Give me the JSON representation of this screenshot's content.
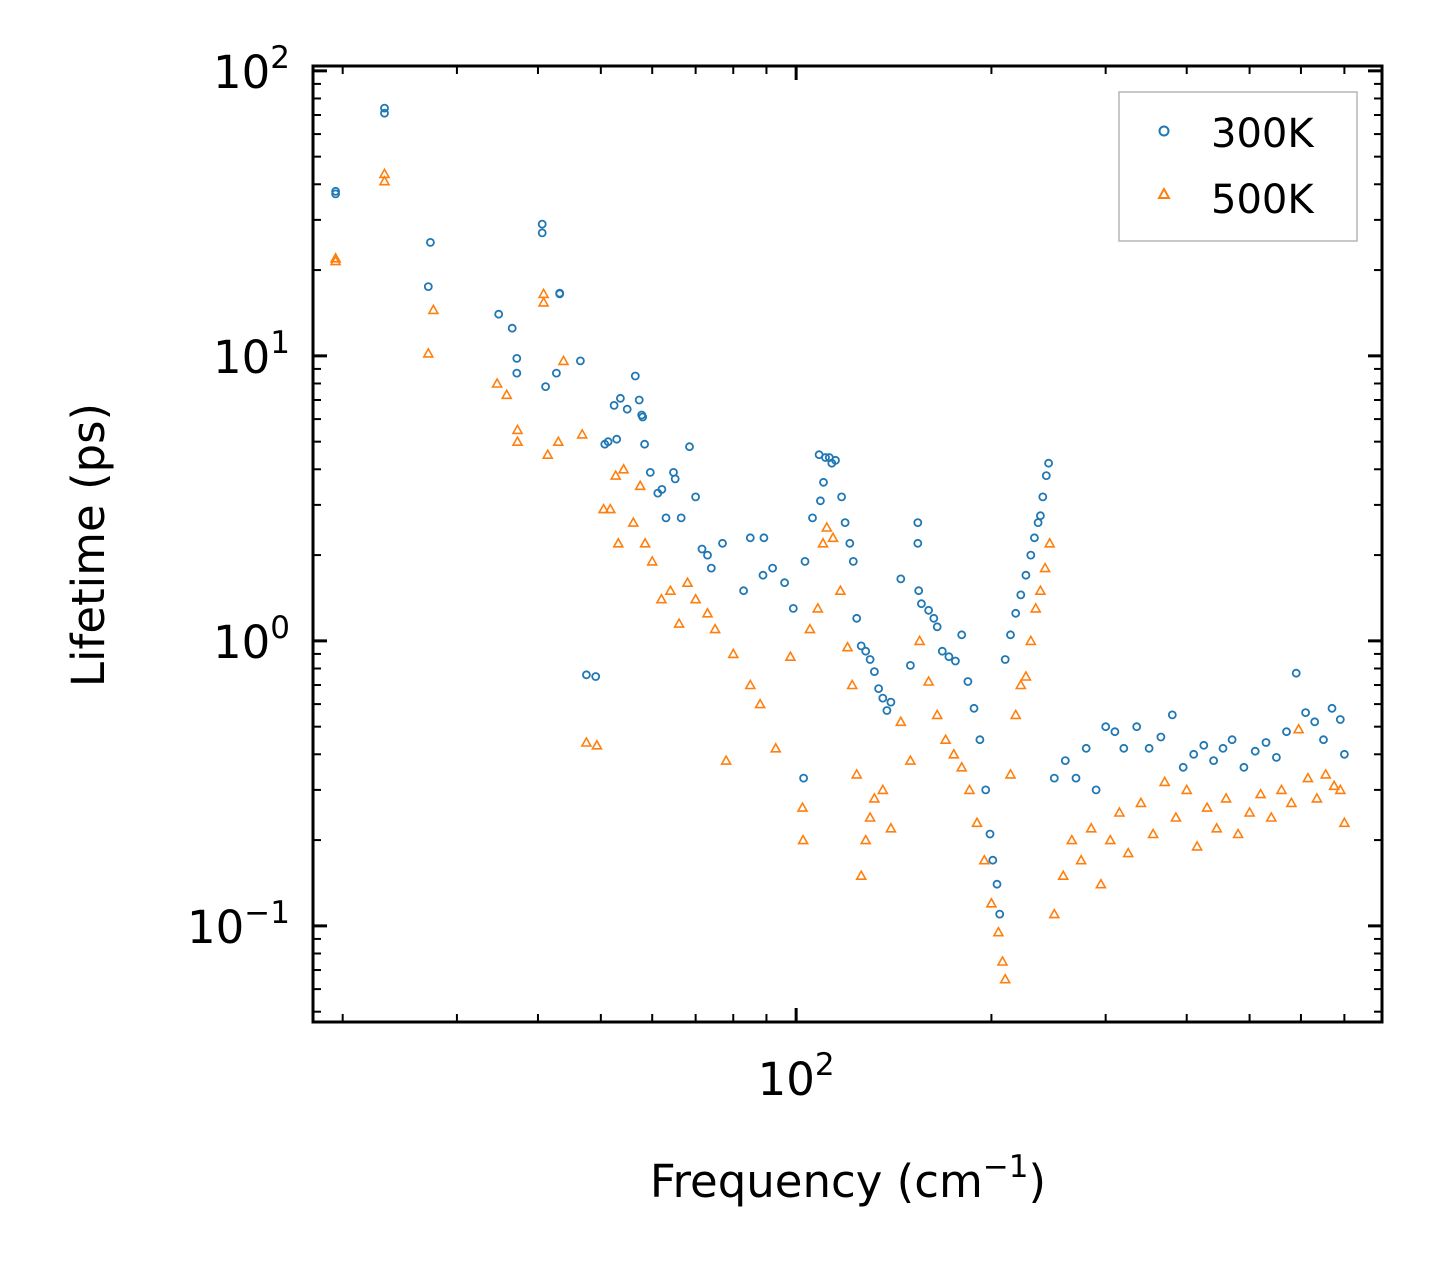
{
  "chart_data": {
    "type": "scatter",
    "xscale": "log",
    "yscale": "log",
    "xlim": [
      18,
      800
    ],
    "ylim": [
      0.046,
      104
    ],
    "xlabel": "Frequency (cm",
    "xlabel_sup": "−1",
    "xlabel_end": ")",
    "ylabel": "Lifetime (ps)",
    "x_ticks": [
      {
        "base": "10",
        "exp": "2",
        "value": 100
      }
    ],
    "y_ticks": [
      {
        "base": "10",
        "exp": "2",
        "value": 100
      },
      {
        "base": "10",
        "exp": "1",
        "value": 10
      },
      {
        "base": "10",
        "exp": "0",
        "value": 1
      },
      {
        "base": "10",
        "exp": "−1",
        "value": 0.1
      }
    ],
    "legend_position": "top-right",
    "series": [
      {
        "name": "300K",
        "marker": "circle",
        "color": "#1f77b4",
        "points": [
          [
            19.5,
            37
          ],
          [
            19.5,
            37.8
          ],
          [
            23.2,
            71
          ],
          [
            23.2,
            74
          ],
          [
            27.3,
            25
          ],
          [
            27.1,
            17.5
          ],
          [
            34.8,
            14
          ],
          [
            36.5,
            12.5
          ],
          [
            37.1,
            9.8
          ],
          [
            37.1,
            8.7
          ],
          [
            40.6,
            29
          ],
          [
            40.6,
            27
          ],
          [
            41.1,
            7.8
          ],
          [
            42.7,
            8.7
          ],
          [
            43.2,
            16.5
          ],
          [
            43.2,
            16.6
          ],
          [
            46.5,
            9.6
          ],
          [
            47.5,
            0.76
          ],
          [
            49.1,
            0.75
          ],
          [
            50.7,
            4.9
          ],
          [
            51.3,
            5
          ],
          [
            52.4,
            6.7
          ],
          [
            52.9,
            5.1
          ],
          [
            53.6,
            7.1
          ],
          [
            54.9,
            6.5
          ],
          [
            56.5,
            8.5
          ],
          [
            57.3,
            7
          ],
          [
            57.8,
            6.2
          ],
          [
            58,
            6.1
          ],
          [
            58.4,
            4.9
          ],
          [
            59.6,
            3.9
          ],
          [
            61.2,
            3.3
          ],
          [
            62.1,
            3.4
          ],
          [
            63,
            2.7
          ],
          [
            64.7,
            3.9
          ],
          [
            65.1,
            3.7
          ],
          [
            66.5,
            2.7
          ],
          [
            68.5,
            4.8
          ],
          [
            70,
            3.2
          ],
          [
            71.6,
            2.1
          ],
          [
            73,
            2
          ],
          [
            74,
            1.8
          ],
          [
            77,
            2.2
          ],
          [
            83,
            1.5
          ],
          [
            85,
            2.3
          ],
          [
            88.9,
            1.7
          ],
          [
            89.2,
            2.3
          ],
          [
            92,
            1.8
          ],
          [
            96,
            1.6
          ],
          [
            99,
            1.3
          ],
          [
            102.7,
            0.33
          ],
          [
            103.2,
            1.9
          ],
          [
            106,
            2.7
          ],
          [
            108.5,
            4.5
          ],
          [
            109,
            3.1
          ],
          [
            110.2,
            3.6
          ],
          [
            111,
            4.4
          ],
          [
            112.5,
            4.4
          ],
          [
            113.5,
            4.2
          ],
          [
            115,
            4.3
          ],
          [
            117.5,
            3.2
          ],
          [
            119,
            2.6
          ],
          [
            121,
            2.2
          ],
          [
            122.5,
            1.9
          ],
          [
            124,
            1.2
          ],
          [
            126,
            0.96
          ],
          [
            128,
            0.92
          ],
          [
            130,
            0.86
          ],
          [
            132,
            0.78
          ],
          [
            134,
            0.68
          ],
          [
            136,
            0.63
          ],
          [
            138,
            0.57
          ],
          [
            140,
            0.61
          ],
          [
            145,
            1.65
          ],
          [
            150,
            0.82
          ],
          [
            154,
            2.6
          ],
          [
            154,
            2.2
          ],
          [
            154.5,
            1.5
          ],
          [
            156,
            1.35
          ],
          [
            160,
            1.28
          ],
          [
            163,
            1.2
          ],
          [
            165,
            1.12
          ],
          [
            168,
            0.92
          ],
          [
            172,
            0.88
          ],
          [
            176,
            0.85
          ],
          [
            180,
            1.05
          ],
          [
            184,
            0.72
          ],
          [
            188,
            0.58
          ],
          [
            192,
            0.45
          ],
          [
            196,
            0.3
          ],
          [
            199,
            0.21
          ],
          [
            201,
            0.17
          ],
          [
            204,
            0.14
          ],
          [
            206,
            0.11
          ],
          [
            210,
            0.86
          ],
          [
            214,
            1.05
          ],
          [
            218,
            1.25
          ],
          [
            222,
            1.45
          ],
          [
            226,
            1.7
          ],
          [
            230,
            2.0
          ],
          [
            233,
            2.3
          ],
          [
            236,
            2.6
          ],
          [
            238,
            2.75
          ],
          [
            240,
            3.2
          ],
          [
            243,
            3.8
          ],
          [
            245,
            4.2
          ],
          [
            250,
            0.33
          ],
          [
            260,
            0.38
          ],
          [
            270,
            0.33
          ],
          [
            280,
            0.42
          ],
          [
            290,
            0.3
          ],
          [
            300,
            0.5
          ],
          [
            310,
            0.48
          ],
          [
            320,
            0.42
          ],
          [
            335,
            0.5
          ],
          [
            350,
            0.42
          ],
          [
            365,
            0.46
          ],
          [
            380,
            0.55
          ],
          [
            395,
            0.36
          ],
          [
            410,
            0.4
          ],
          [
            425,
            0.43
          ],
          [
            440,
            0.38
          ],
          [
            455,
            0.42
          ],
          [
            470,
            0.45
          ],
          [
            490,
            0.36
          ],
          [
            510,
            0.41
          ],
          [
            530,
            0.44
          ],
          [
            550,
            0.39
          ],
          [
            570,
            0.48
          ],
          [
            590,
            0.77
          ],
          [
            610,
            0.56
          ],
          [
            630,
            0.52
          ],
          [
            650,
            0.45
          ],
          [
            670,
            0.58
          ],
          [
            690,
            0.53
          ],
          [
            700,
            0.4
          ]
        ]
      },
      {
        "name": "500K",
        "marker": "triangle",
        "color": "#ff7f0e",
        "points": [
          [
            19.5,
            21.5
          ],
          [
            19.5,
            22
          ],
          [
            23.2,
            41
          ],
          [
            23.2,
            43.5
          ],
          [
            27.1,
            10.2
          ],
          [
            27.6,
            14.5
          ],
          [
            34.6,
            8
          ],
          [
            35.8,
            7.3
          ],
          [
            37.2,
            5.5
          ],
          [
            37.2,
            5
          ],
          [
            40.8,
            16.5
          ],
          [
            40.8,
            15.4
          ],
          [
            41.4,
            4.5
          ],
          [
            43,
            5
          ],
          [
            43.8,
            9.6
          ],
          [
            46.8,
            5.3
          ],
          [
            47.5,
            0.44
          ],
          [
            49.3,
            0.43
          ],
          [
            50.5,
            2.9
          ],
          [
            51.7,
            2.9
          ],
          [
            52.7,
            3.8
          ],
          [
            53.2,
            2.2
          ],
          [
            54.2,
            4
          ],
          [
            56.1,
            2.6
          ],
          [
            57.5,
            3.5
          ],
          [
            58.5,
            2.2
          ],
          [
            60,
            1.9
          ],
          [
            62,
            1.4
          ],
          [
            64,
            1.5
          ],
          [
            66,
            1.15
          ],
          [
            68,
            1.6
          ],
          [
            70,
            1.4
          ],
          [
            73,
            1.25
          ],
          [
            75,
            1.1
          ],
          [
            78,
            0.38
          ],
          [
            80,
            0.9
          ],
          [
            85,
            0.7
          ],
          [
            88,
            0.6
          ],
          [
            93,
            0.42
          ],
          [
            98,
            0.88
          ],
          [
            102.3,
            0.26
          ],
          [
            102.5,
            0.2
          ],
          [
            105,
            1.1
          ],
          [
            108,
            1.3
          ],
          [
            110,
            2.2
          ],
          [
            111.5,
            2.5
          ],
          [
            114,
            2.3
          ],
          [
            117,
            1.5
          ],
          [
            120,
            0.95
          ],
          [
            122,
            0.7
          ],
          [
            124,
            0.34
          ],
          [
            126,
            0.15
          ],
          [
            128,
            0.2
          ],
          [
            130,
            0.24
          ],
          [
            132,
            0.28
          ],
          [
            136,
            0.3
          ],
          [
            140,
            0.22
          ],
          [
            145,
            0.52
          ],
          [
            150,
            0.38
          ],
          [
            155,
            1.0
          ],
          [
            160,
            0.72
          ],
          [
            165,
            0.55
          ],
          [
            170,
            0.45
          ],
          [
            175,
            0.4
          ],
          [
            180,
            0.36
          ],
          [
            185,
            0.3
          ],
          [
            190,
            0.23
          ],
          [
            195,
            0.17
          ],
          [
            200,
            0.12
          ],
          [
            205,
            0.095
          ],
          [
            208,
            0.075
          ],
          [
            210,
            0.065
          ],
          [
            214,
            0.34
          ],
          [
            218,
            0.55
          ],
          [
            222,
            0.7
          ],
          [
            226,
            0.75
          ],
          [
            230,
            1.0
          ],
          [
            234,
            1.3
          ],
          [
            238,
            1.5
          ],
          [
            242,
            1.8
          ],
          [
            246,
            2.2
          ],
          [
            250,
            0.11
          ],
          [
            258,
            0.15
          ],
          [
            266,
            0.2
          ],
          [
            275,
            0.17
          ],
          [
            285,
            0.22
          ],
          [
            295,
            0.14
          ],
          [
            305,
            0.2
          ],
          [
            315,
            0.25
          ],
          [
            325,
            0.18
          ],
          [
            340,
            0.27
          ],
          [
            355,
            0.21
          ],
          [
            370,
            0.32
          ],
          [
            385,
            0.24
          ],
          [
            400,
            0.3
          ],
          [
            415,
            0.19
          ],
          [
            430,
            0.26
          ],
          [
            445,
            0.22
          ],
          [
            460,
            0.28
          ],
          [
            480,
            0.21
          ],
          [
            500,
            0.25
          ],
          [
            520,
            0.29
          ],
          [
            540,
            0.24
          ],
          [
            560,
            0.3
          ],
          [
            580,
            0.27
          ],
          [
            595,
            0.49
          ],
          [
            615,
            0.33
          ],
          [
            635,
            0.28
          ],
          [
            655,
            0.34
          ],
          [
            675,
            0.31
          ],
          [
            690,
            0.3
          ],
          [
            700,
            0.23
          ]
        ]
      }
    ]
  }
}
